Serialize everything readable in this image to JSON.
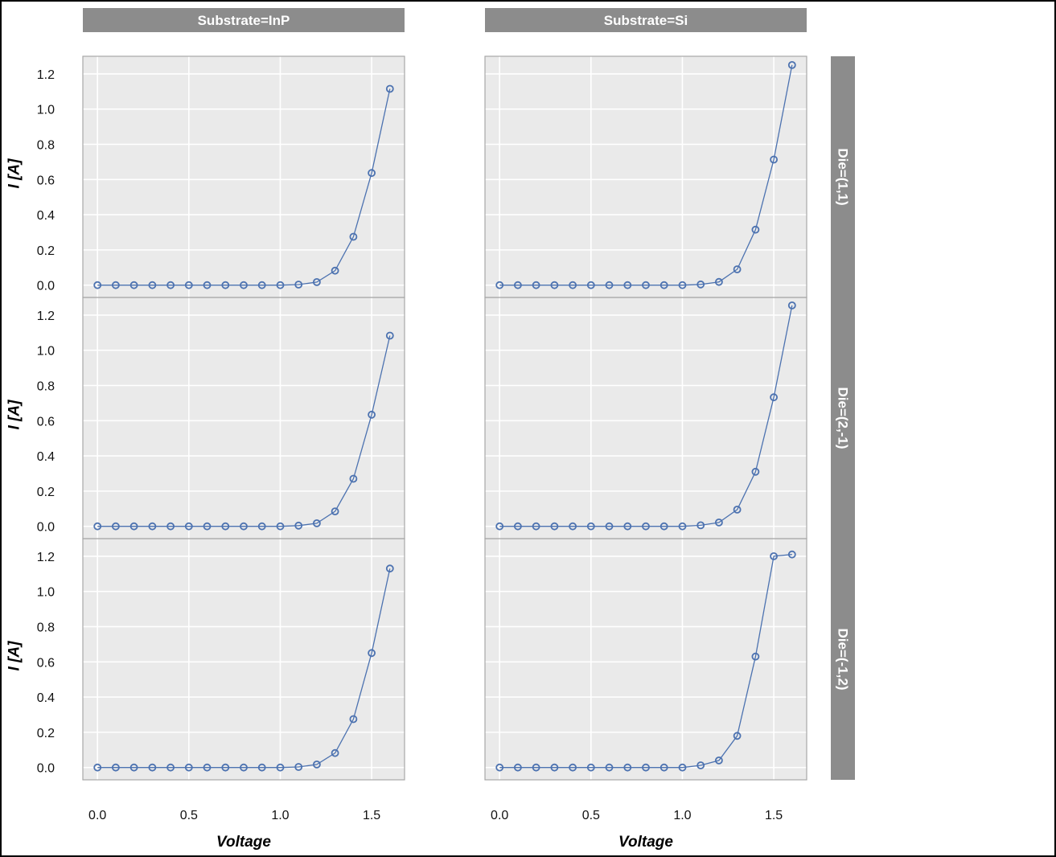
{
  "chart_data": {
    "type": "line",
    "layout": "facet-grid",
    "column_facets": [
      "Substrate=InP",
      "Substrate=Si"
    ],
    "row_facets": [
      "Die=(1,1)",
      "Die=(2,-1)",
      "Die=(-1,2)"
    ],
    "xlabel": "Voltage",
    "ylabel": "I [A]",
    "xlim": [
      -0.08,
      1.68
    ],
    "ylim": [
      -0.07,
      1.3
    ],
    "x_ticks": [
      "0.0",
      "0.5",
      "1.0",
      "1.5"
    ],
    "y_ticks": [
      "0.0",
      "0.2",
      "0.4",
      "0.6",
      "0.8",
      "1.0",
      "1.2"
    ],
    "grid": true,
    "marker": "open-circle",
    "series_color": "#4c72b0",
    "panel_background": "#eaeaea",
    "strip_color": "#8c8c8c",
    "x": [
      0.0,
      0.1,
      0.2,
      0.3,
      0.4,
      0.5,
      0.6,
      0.7,
      0.8,
      0.9,
      1.0,
      1.1,
      1.2,
      1.3,
      1.4,
      1.5,
      1.6
    ],
    "panels": [
      {
        "row": 0,
        "col": 0,
        "values": [
          0,
          0,
          0,
          0,
          0,
          0,
          0,
          0,
          0,
          0,
          0,
          0.003,
          0.017,
          0.082,
          0.275,
          0.637,
          1.115
        ]
      },
      {
        "row": 0,
        "col": 1,
        "values": [
          0,
          0,
          0,
          0,
          0,
          0,
          0,
          0,
          0,
          0,
          0,
          0.004,
          0.018,
          0.09,
          0.315,
          0.713,
          1.25
        ]
      },
      {
        "row": 1,
        "col": 0,
        "values": [
          0,
          0,
          0,
          0,
          0,
          0,
          0,
          0,
          0,
          0,
          0,
          0.004,
          0.017,
          0.085,
          0.27,
          0.634,
          1.083
        ]
      },
      {
        "row": 1,
        "col": 1,
        "values": [
          0,
          0,
          0,
          0,
          0,
          0,
          0,
          0,
          0,
          0,
          0,
          0.006,
          0.022,
          0.095,
          0.31,
          0.733,
          1.255
        ]
      },
      {
        "row": 2,
        "col": 0,
        "values": [
          0,
          0,
          0,
          0,
          0,
          0,
          0,
          0,
          0,
          0,
          0,
          0.003,
          0.017,
          0.082,
          0.275,
          0.65,
          1.13
        ]
      },
      {
        "row": 2,
        "col": 1,
        "values": [
          0,
          0,
          0,
          0,
          0,
          0,
          0,
          0,
          0,
          0,
          0,
          0.012,
          0.04,
          0.18,
          0.63,
          1.2,
          1.21
        ]
      }
    ]
  }
}
